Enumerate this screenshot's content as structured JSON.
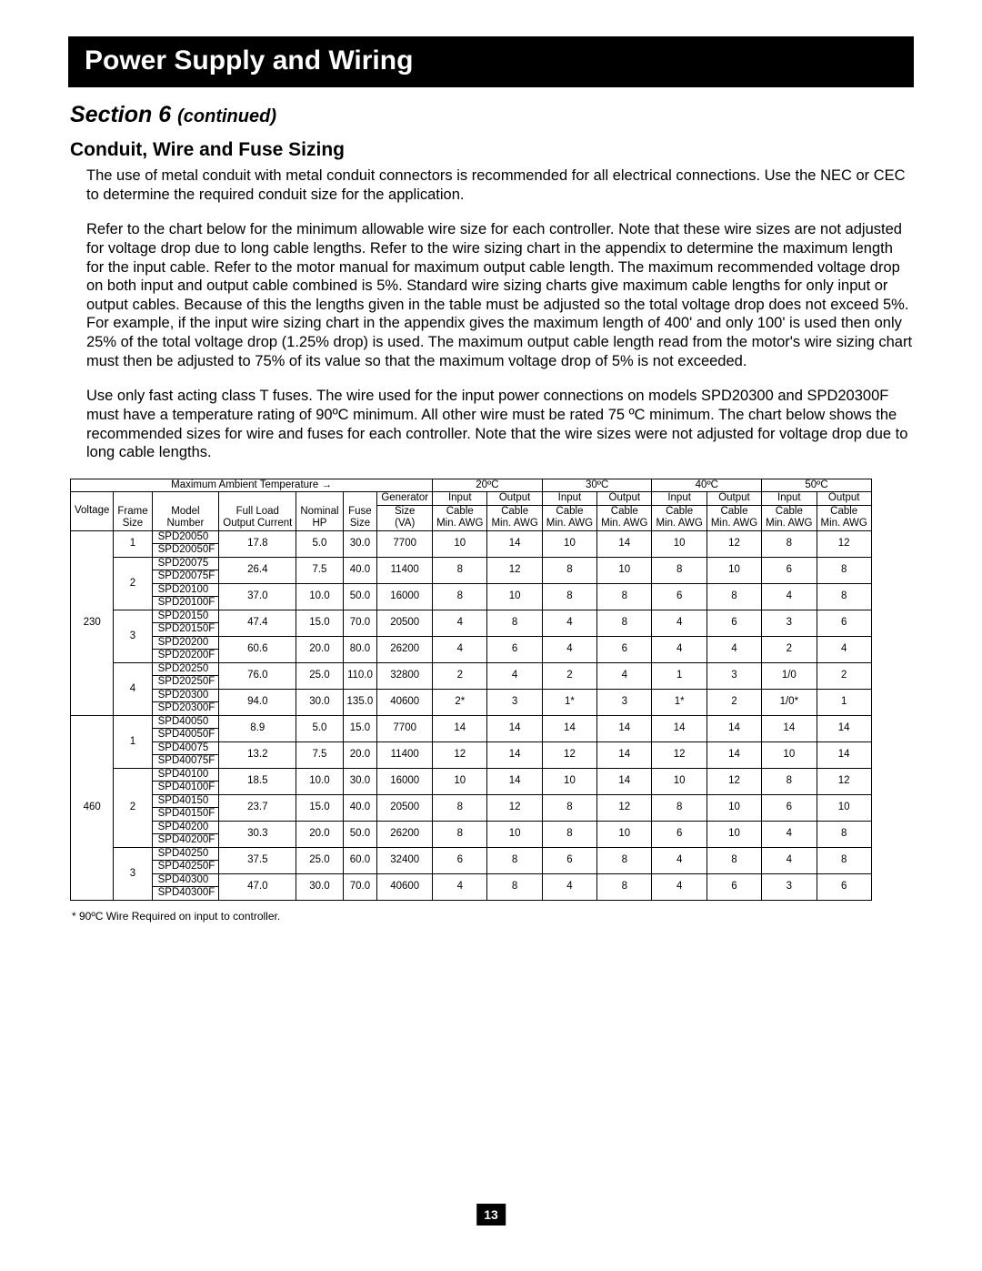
{
  "banner": "Power Supply and Wiring",
  "section_label": "Section 6",
  "continued": "(continued)",
  "subhead": "Conduit, Wire and Fuse Sizing",
  "para1": "The use of metal conduit with metal conduit connectors is recommended for all electrical connections. Use the NEC or CEC to determine the required conduit size for the application.",
  "para2": "Refer to the chart below for the minimum allowable wire size for each controller. Note that these wire sizes are not adjusted for voltage drop due to long cable lengths. Refer to the wire sizing chart in the appendix to determine the maximum length for the input cable. Refer to the motor manual for maximum output cable length. The maximum recommended voltage drop on both input and output cable combined is 5%. Standard wire sizing charts give maximum cable lengths for only input or output cables. Because of this the lengths given in the table must be adjusted so the total voltage drop does not exceed 5%. For example, if the input wire sizing chart in the appendix gives the maximum length of 400' and only 100' is used then only 25% of the total voltage drop (1.25% drop) is used. The maximum output cable length read from the motor's wire sizing chart must then be adjusted to 75% of its value so that the maximum voltage drop of 5% is not exceeded.",
  "para3": "Use only fast acting class T fuses. The wire used for the input power connections on models SPD20300 and SPD20300F must have a temperature rating of 90ºC minimum. All other wire must be rated 75 ºC minimum. The chart below shows the recommended sizes for wire and fuses for each controller. Note that the wire sizes were not adjusted for voltage drop due to long cable lengths.",
  "footnote": "* 90ºC Wire Required on input to controller.",
  "pagenum": "13",
  "table": {
    "max_ambient_label": "Maximum Ambient Temperature →",
    "temps": [
      "20ºC",
      "30ºC",
      "40ºC",
      "50ºC"
    ],
    "head": {
      "voltage": "Voltage",
      "frame": [
        "Frame",
        "Size"
      ],
      "model": [
        "Model",
        "Number"
      ],
      "load": [
        "Full Load",
        "Output Current"
      ],
      "hp": [
        "Nominal",
        "HP"
      ],
      "fuse": [
        "Fuse",
        "Size"
      ],
      "gen": [
        "Generator",
        "Size",
        "(VA)"
      ],
      "input": [
        "Input",
        "Cable",
        "Min. AWG"
      ],
      "output": [
        "Output",
        "Cable",
        "Min. AWG"
      ]
    },
    "groups": [
      {
        "voltage": "230",
        "frames": [
          {
            "frame": "1",
            "rows": [
              {
                "models": [
                  "SPD20050",
                  "SPD20050F"
                ],
                "load": "17.8",
                "hp": "5.0",
                "fuse": "30.0",
                "gen": "7700",
                "c": [
                  "10",
                  "14",
                  "10",
                  "14",
                  "10",
                  "12",
                  "8",
                  "12"
                ]
              }
            ]
          },
          {
            "frame": "2",
            "rows": [
              {
                "models": [
                  "SPD20075",
                  "SPD20075F"
                ],
                "load": "26.4",
                "hp": "7.5",
                "fuse": "40.0",
                "gen": "11400",
                "c": [
                  "8",
                  "12",
                  "8",
                  "10",
                  "8",
                  "10",
                  "6",
                  "8"
                ]
              },
              {
                "models": [
                  "SPD20100",
                  "SPD20100F"
                ],
                "load": "37.0",
                "hp": "10.0",
                "fuse": "50.0",
                "gen": "16000",
                "c": [
                  "8",
                  "10",
                  "8",
                  "8",
                  "6",
                  "8",
                  "4",
                  "8"
                ]
              }
            ]
          },
          {
            "frame": "3",
            "rows": [
              {
                "models": [
                  "SPD20150",
                  "SPD20150F"
                ],
                "load": "47.4",
                "hp": "15.0",
                "fuse": "70.0",
                "gen": "20500",
                "c": [
                  "4",
                  "8",
                  "4",
                  "8",
                  "4",
                  "6",
                  "3",
                  "6"
                ]
              },
              {
                "models": [
                  "SPD20200",
                  "SPD20200F"
                ],
                "load": "60.6",
                "hp": "20.0",
                "fuse": "80.0",
                "gen": "26200",
                "c": [
                  "4",
                  "6",
                  "4",
                  "6",
                  "4",
                  "4",
                  "2",
                  "4"
                ]
              }
            ]
          },
          {
            "frame": "4",
            "rows": [
              {
                "models": [
                  "SPD20250",
                  "SPD20250F"
                ],
                "load": "76.0",
                "hp": "25.0",
                "fuse": "110.0",
                "gen": "32800",
                "c": [
                  "2",
                  "4",
                  "2",
                  "4",
                  "1",
                  "3",
                  "1/0",
                  "2"
                ]
              },
              {
                "models": [
                  "SPD20300",
                  "SPD20300F"
                ],
                "load": "94.0",
                "hp": "30.0",
                "fuse": "135.0",
                "gen": "40600",
                "c": [
                  "2*",
                  "3",
                  "1*",
                  "3",
                  "1*",
                  "2",
                  "1/0*",
                  "1"
                ]
              }
            ]
          }
        ]
      },
      {
        "voltage": "460",
        "frames": [
          {
            "frame": "1",
            "rows": [
              {
                "models": [
                  "SPD40050",
                  "SPD40050F"
                ],
                "load": "8.9",
                "hp": "5.0",
                "fuse": "15.0",
                "gen": "7700",
                "c": [
                  "14",
                  "14",
                  "14",
                  "14",
                  "14",
                  "14",
                  "14",
                  "14"
                ]
              },
              {
                "models": [
                  "SPD40075",
                  "SPD40075F"
                ],
                "load": "13.2",
                "hp": "7.5",
                "fuse": "20.0",
                "gen": "11400",
                "c": [
                  "12",
                  "14",
                  "12",
                  "14",
                  "12",
                  "14",
                  "10",
                  "14"
                ]
              }
            ]
          },
          {
            "frame": "2",
            "rows": [
              {
                "models": [
                  "SPD40100",
                  "SPD40100F"
                ],
                "load": "18.5",
                "hp": "10.0",
                "fuse": "30.0",
                "gen": "16000",
                "c": [
                  "10",
                  "14",
                  "10",
                  "14",
                  "10",
                  "12",
                  "8",
                  "12"
                ]
              },
              {
                "models": [
                  "SPD40150",
                  "SPD40150F"
                ],
                "load": "23.7",
                "hp": "15.0",
                "fuse": "40.0",
                "gen": "20500",
                "c": [
                  "8",
                  "12",
                  "8",
                  "12",
                  "8",
                  "10",
                  "6",
                  "10"
                ]
              },
              {
                "models": [
                  "SPD40200",
                  "SPD40200F"
                ],
                "load": "30.3",
                "hp": "20.0",
                "fuse": "50.0",
                "gen": "26200",
                "c": [
                  "8",
                  "10",
                  "8",
                  "10",
                  "6",
                  "10",
                  "4",
                  "8"
                ]
              }
            ]
          },
          {
            "frame": "3",
            "rows": [
              {
                "models": [
                  "SPD40250",
                  "SPD40250F"
                ],
                "load": "37.5",
                "hp": "25.0",
                "fuse": "60.0",
                "gen": "32400",
                "c": [
                  "6",
                  "8",
                  "6",
                  "8",
                  "4",
                  "8",
                  "4",
                  "8"
                ]
              },
              {
                "models": [
                  "SPD40300",
                  "SPD40300F"
                ],
                "load": "47.0",
                "hp": "30.0",
                "fuse": "70.0",
                "gen": "40600",
                "c": [
                  "4",
                  "8",
                  "4",
                  "8",
                  "4",
                  "6",
                  "3",
                  "6"
                ]
              }
            ]
          }
        ]
      }
    ]
  }
}
